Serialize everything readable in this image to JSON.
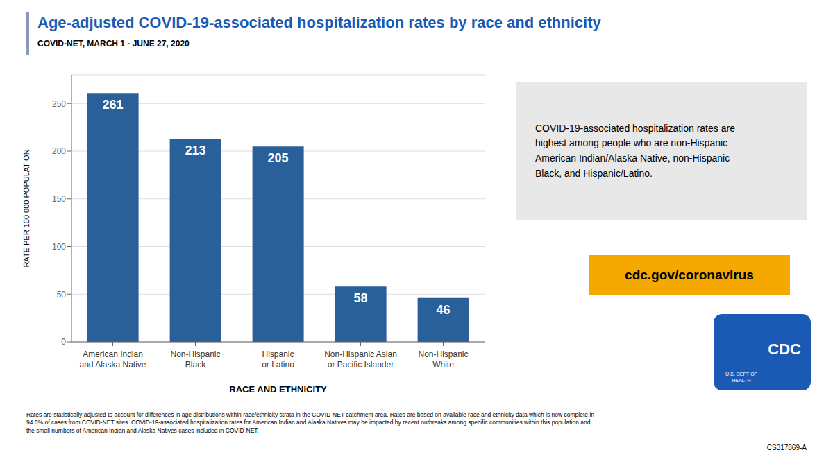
{
  "chart_data": {
    "type": "bar",
    "title": "Age-adjusted COVID-19-associated hospitalization rates by race and ethnicity",
    "subtitle": "COVID-NET, MARCH 1 - JUNE 27, 2020",
    "categories": [
      "American Indian\nand Alaska Native",
      "Non-Hispanic\nBlack",
      "Hispanic\nor Latino",
      "Non-Hispanic Asian\nor Pacific Islander",
      "Non-Hispanic\nWhite"
    ],
    "values": [
      261,
      213,
      205,
      58,
      46
    ],
    "color": "#2a6099",
    "xlabel": "RACE AND ETHNICITY",
    "ylabel": "RATE PER 100,000 POPULATION",
    "ylim": [
      0,
      280
    ],
    "yticks": [
      0,
      50,
      100,
      150,
      200,
      250
    ],
    "grid": true,
    "data_labels": true,
    "annotations": [
      "COVID-19-associated hospitalization rates are\nhighest among people who are non-Hispanic\nAmerican Indian/Alaska Native, non-Hispanic\nBlack, and Hispanic/Latino.",
      "cdc.gov/coronavirus",
      "Rates are statistically adjusted to account for differences in age distributions within race/ethnicity strata in the COVID-NET catchment area. Rates are based on available race and ethnicity data which is now complete in\n94.6% of cases from COVID-NET sites. COVID-19-associated hospitalization rates for American Indian and Alaska Natives may be impacted by recent outbreaks among specific communities within this population and\nthe small numbers of American Indian and Alaska Natives cases included in COVID-NET.",
      "CS317869-A",
      "CDC",
      "U.S. DEPT OF\nHEALTH"
    ]
  }
}
